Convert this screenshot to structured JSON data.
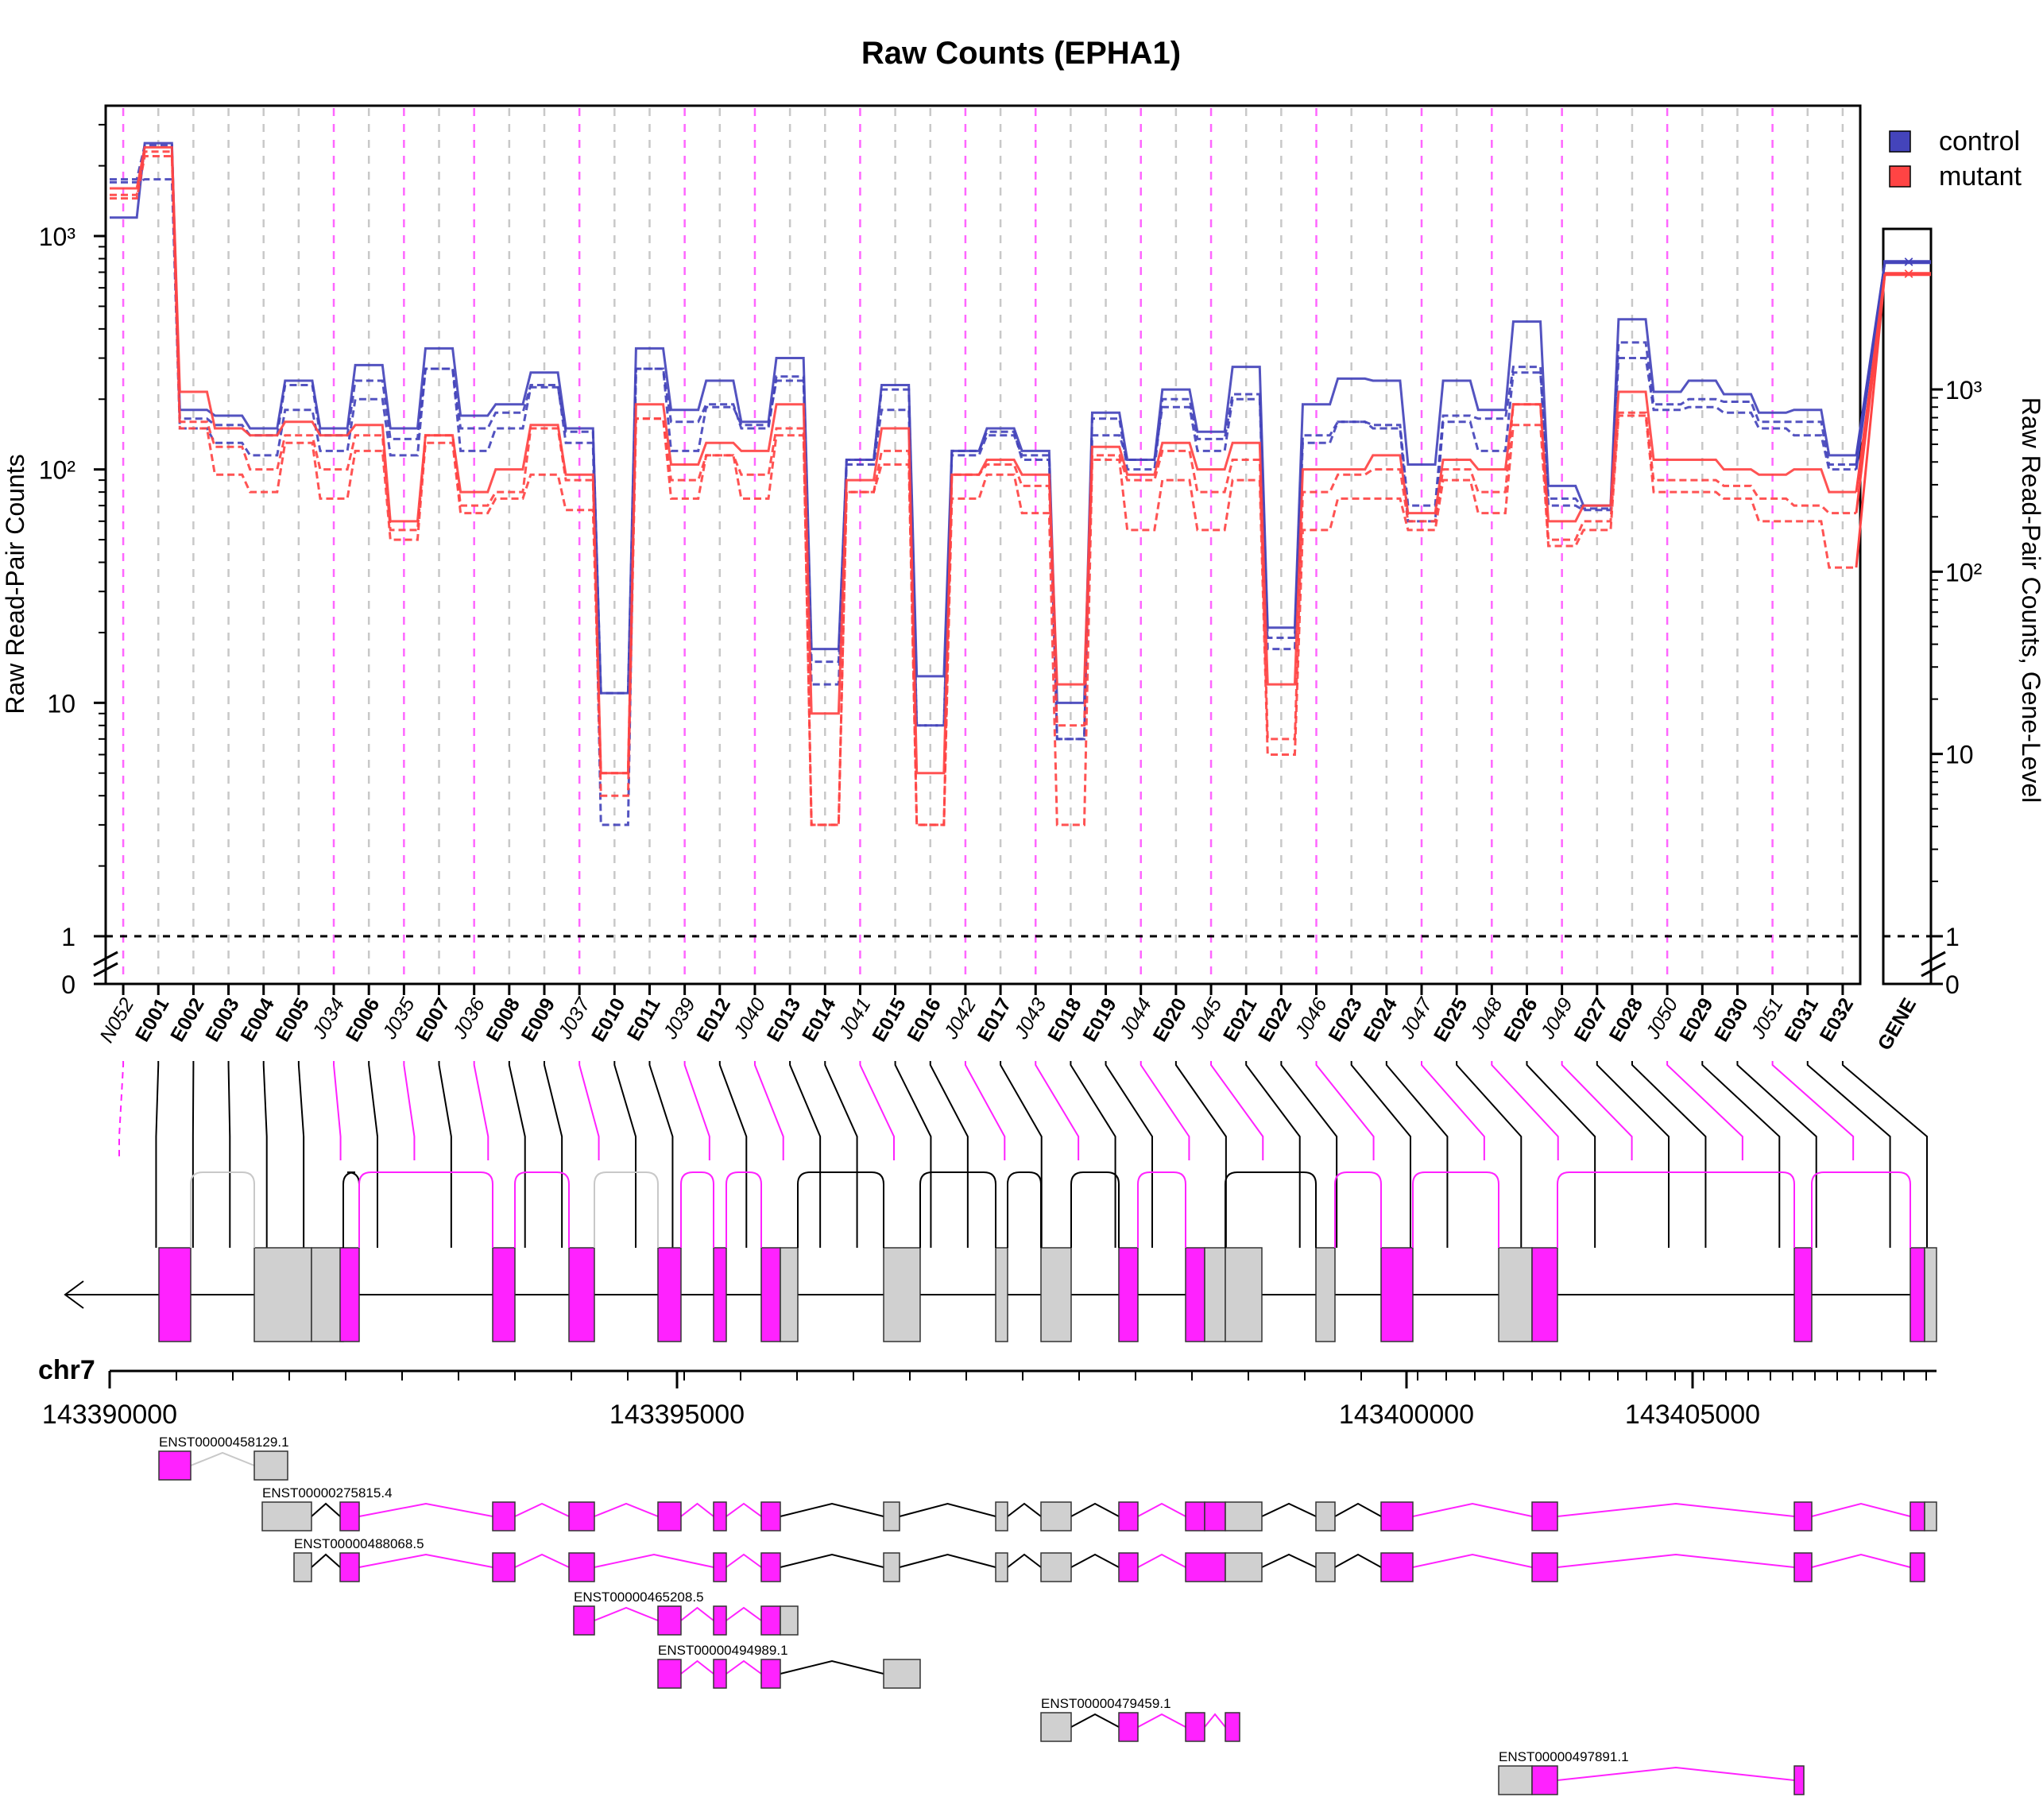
{
  "title": "Raw Counts (EPHA1)",
  "ylabel_left": "Raw Read-Pair Counts",
  "ylabel_right": "Raw Read-Pair Counts, Gene-Level",
  "left_ticks": [
    "10³",
    "10²",
    "10",
    "1",
    "0"
  ],
  "right_ticks": [
    "10³",
    "10²",
    "10",
    "1",
    "0"
  ],
  "legend": [
    {
      "label": "control",
      "color": "#4444bb"
    },
    {
      "label": "mutant",
      "color": "#ff4444"
    }
  ],
  "colors": {
    "control": "#4444bb",
    "mutant": "#ff4444",
    "exon": "#ff22ff",
    "intron_grey": "#d0d0d0",
    "guide": "#ff66ff"
  },
  "features": [
    {
      "id": "N052",
      "type": "junction"
    },
    {
      "id": "E001",
      "type": "exon"
    },
    {
      "id": "E002",
      "type": "exon"
    },
    {
      "id": "E003",
      "type": "exon"
    },
    {
      "id": "E004",
      "type": "exon"
    },
    {
      "id": "E005",
      "type": "exon"
    },
    {
      "id": "J034",
      "type": "junction"
    },
    {
      "id": "E006",
      "type": "exon"
    },
    {
      "id": "J035",
      "type": "junction"
    },
    {
      "id": "E007",
      "type": "exon"
    },
    {
      "id": "J036",
      "type": "junction"
    },
    {
      "id": "E008",
      "type": "exon"
    },
    {
      "id": "E009",
      "type": "exon"
    },
    {
      "id": "J037",
      "type": "junction"
    },
    {
      "id": "E010",
      "type": "exon"
    },
    {
      "id": "E011",
      "type": "exon"
    },
    {
      "id": "J039",
      "type": "junction"
    },
    {
      "id": "E012",
      "type": "exon"
    },
    {
      "id": "J040",
      "type": "junction"
    },
    {
      "id": "E013",
      "type": "exon"
    },
    {
      "id": "E014",
      "type": "exon"
    },
    {
      "id": "J041",
      "type": "junction"
    },
    {
      "id": "E015",
      "type": "exon"
    },
    {
      "id": "E016",
      "type": "exon"
    },
    {
      "id": "J042",
      "type": "junction"
    },
    {
      "id": "E017",
      "type": "exon"
    },
    {
      "id": "J043",
      "type": "junction"
    },
    {
      "id": "E018",
      "type": "exon"
    },
    {
      "id": "E019",
      "type": "exon"
    },
    {
      "id": "J044",
      "type": "junction"
    },
    {
      "id": "E020",
      "type": "exon"
    },
    {
      "id": "J045",
      "type": "junction"
    },
    {
      "id": "E021",
      "type": "exon"
    },
    {
      "id": "E022",
      "type": "exon"
    },
    {
      "id": "J046",
      "type": "junction"
    },
    {
      "id": "E023",
      "type": "exon"
    },
    {
      "id": "E024",
      "type": "exon"
    },
    {
      "id": "J047",
      "type": "junction"
    },
    {
      "id": "E025",
      "type": "exon"
    },
    {
      "id": "J048",
      "type": "junction"
    },
    {
      "id": "E026",
      "type": "exon"
    },
    {
      "id": "J049",
      "type": "junction"
    },
    {
      "id": "E027",
      "type": "exon"
    },
    {
      "id": "E028",
      "type": "exon"
    },
    {
      "id": "J050",
      "type": "junction"
    },
    {
      "id": "E029",
      "type": "exon"
    },
    {
      "id": "E030",
      "type": "exon"
    },
    {
      "id": "J051",
      "type": "junction"
    },
    {
      "id": "E031",
      "type": "exon"
    },
    {
      "id": "E032",
      "type": "exon"
    }
  ],
  "gene_label": "GENE",
  "chrom_label": "chr7",
  "genome_ticks": [
    "143390000",
    "143395000",
    "143400000",
    "143405000"
  ],
  "transcripts": [
    "ENST00000458129.1",
    "ENST00000275815.4",
    "ENST00000488068.5",
    "ENST00000465208.5",
    "ENST00000494989.1",
    "ENST00000479459.1",
    "ENST00000497891.1"
  ],
  "chart_data": {
    "type": "line",
    "yscale": "log (with 0 break)",
    "grid": false,
    "legend_position": "top-right",
    "categories": [
      "N052",
      "E001",
      "E002",
      "E003",
      "E004",
      "E005",
      "J034",
      "E006",
      "J035",
      "E007",
      "J036",
      "E008",
      "E009",
      "J037",
      "E010",
      "E011",
      "J039",
      "E012",
      "J040",
      "E013",
      "E014",
      "J041",
      "E015",
      "E016",
      "J042",
      "E017",
      "J043",
      "E018",
      "E019",
      "J044",
      "E020",
      "J045",
      "E021",
      "E022",
      "J046",
      "E023",
      "E024",
      "J047",
      "E025",
      "J048",
      "E026",
      "J049",
      "E027",
      "E028",
      "J050",
      "E029",
      "E030",
      "J051",
      "E031",
      "E032"
    ],
    "series": [
      {
        "name": "control",
        "samples": [
          [
            1200,
            2500,
            180,
            170,
            150,
            240,
            150,
            280,
            150,
            330,
            170,
            190,
            260,
            150,
            11,
            330,
            180,
            240,
            160,
            300,
            17,
            110,
            230,
            13,
            120,
            150,
            120,
            10,
            175,
            110,
            220,
            145,
            275,
            21,
            190,
            245,
            240,
            105,
            240,
            180,
            430,
            85,
            70,
            440,
            215,
            240,
            210,
            175,
            180,
            115
          ],
          [
            1750,
            2450,
            165,
            155,
            140,
            230,
            140,
            240,
            135,
            270,
            150,
            175,
            230,
            130,
            3,
            270,
            160,
            190,
            150,
            250,
            15,
            110,
            220,
            8,
            115,
            140,
            115,
            7,
            165,
            100,
            200,
            135,
            210,
            19,
            140,
            160,
            155,
            70,
            170,
            165,
            275,
            75,
            68,
            350,
            190,
            200,
            195,
            160,
            160,
            105
          ],
          [
            1700,
            1750,
            150,
            130,
            115,
            180,
            120,
            200,
            115,
            270,
            120,
            150,
            225,
            145,
            11,
            270,
            120,
            185,
            155,
            240,
            12,
            105,
            180,
            8,
            120,
            145,
            110,
            7,
            140,
            110,
            185,
            120,
            200,
            17,
            130,
            160,
            150,
            60,
            160,
            120,
            260,
            70,
            67,
            300,
            180,
            185,
            175,
            150,
            140,
            100
          ]
        ]
      },
      {
        "name": "mutant",
        "samples": [
          [
            1600,
            2400,
            215,
            150,
            140,
            160,
            140,
            155,
            60,
            140,
            80,
            100,
            155,
            95,
            5,
            190,
            105,
            130,
            120,
            190,
            9,
            90,
            150,
            5,
            95,
            110,
            95,
            12,
            125,
            95,
            130,
            100,
            130,
            12,
            100,
            100,
            115,
            65,
            110,
            100,
            190,
            60,
            70,
            215,
            110,
            110,
            100,
            95,
            100,
            80
          ],
          [
            1500,
            2300,
            160,
            125,
            100,
            140,
            100,
            140,
            55,
            140,
            70,
            80,
            150,
            90,
            4,
            165,
            90,
            115,
            95,
            150,
            3,
            80,
            120,
            3,
            95,
            105,
            85,
            8,
            115,
            90,
            120,
            80,
            110,
            7,
            80,
            95,
            100,
            60,
            100,
            80,
            190,
            50,
            60,
            175,
            90,
            90,
            85,
            75,
            70,
            65
          ],
          [
            1450,
            2200,
            150,
            95,
            80,
            130,
            75,
            120,
            50,
            130,
            65,
            75,
            95,
            67,
            5,
            165,
            75,
            115,
            75,
            140,
            3,
            80,
            105,
            3,
            75,
            95,
            65,
            3,
            110,
            55,
            90,
            55,
            90,
            6,
            55,
            75,
            75,
            55,
            90,
            65,
            155,
            47,
            55,
            170,
            80,
            80,
            75,
            60,
            60,
            38
          ]
        ]
      }
    ],
    "gene_level": {
      "control": 5000,
      "mutant": 4300
    }
  }
}
